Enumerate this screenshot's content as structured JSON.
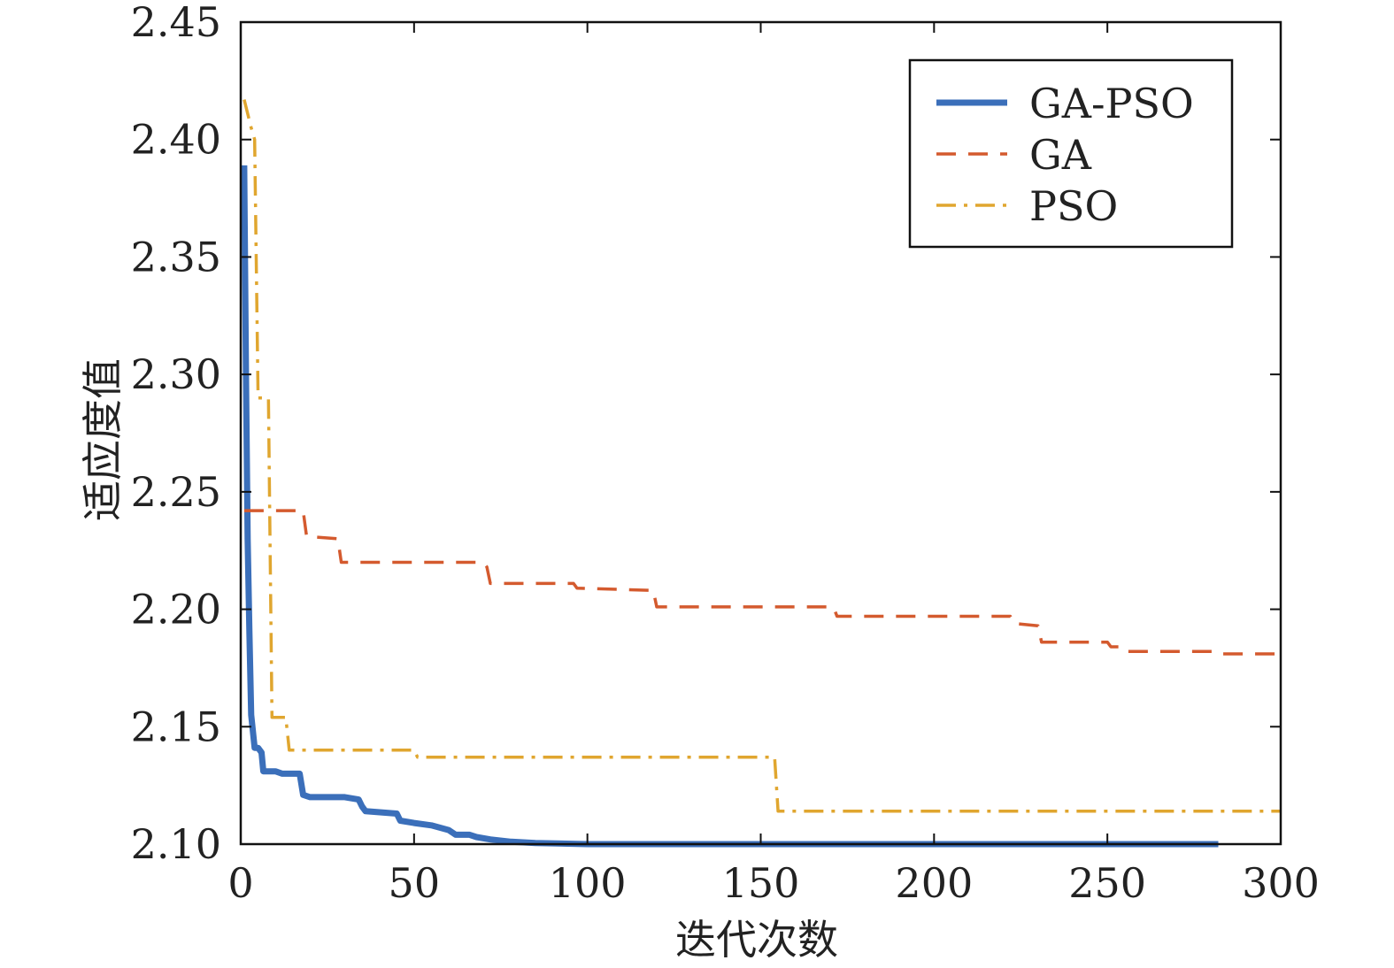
{
  "chart_data": {
    "type": "line",
    "xlabel": "迭代次数",
    "ylabel": "适应度值",
    "xlim": [
      0,
      300
    ],
    "ylim": [
      2.1,
      2.45
    ],
    "xticks": [
      "0",
      "50",
      "100",
      "150",
      "200",
      "250",
      "300"
    ],
    "yticks": [
      "2.10",
      "2.15",
      "2.20",
      "2.25",
      "2.30",
      "2.35",
      "2.40",
      "2.45"
    ],
    "grid": false,
    "legend_position": "top-right",
    "series": [
      {
        "name": "GA-PSO",
        "color": "#3b6fba",
        "style": "solid",
        "points": [
          [
            1,
            2.389
          ],
          [
            1.5,
            2.3
          ],
          [
            2,
            2.23
          ],
          [
            2.5,
            2.19
          ],
          [
            3,
            2.155
          ],
          [
            4,
            2.141
          ],
          [
            5,
            2.141
          ],
          [
            6,
            2.139
          ],
          [
            6.5,
            2.131
          ],
          [
            10,
            2.131
          ],
          [
            12,
            2.13
          ],
          [
            17,
            2.13
          ],
          [
            18,
            2.121
          ],
          [
            20,
            2.12
          ],
          [
            30,
            2.12
          ],
          [
            34,
            2.119
          ],
          [
            35,
            2.116
          ],
          [
            36,
            2.114
          ],
          [
            45,
            2.113
          ],
          [
            46,
            2.11
          ],
          [
            50,
            2.109
          ],
          [
            55,
            2.108
          ],
          [
            60,
            2.106
          ],
          [
            62,
            2.104
          ],
          [
            66,
            2.104
          ],
          [
            68,
            2.103
          ],
          [
            72,
            2.102
          ],
          [
            78,
            2.101
          ],
          [
            85,
            2.1005
          ],
          [
            100,
            2.1
          ],
          [
            282,
            2.1
          ]
        ]
      },
      {
        "name": "GA",
        "color": "#d45a2e",
        "style": "dashed",
        "points": [
          [
            1,
            2.242
          ],
          [
            18,
            2.242
          ],
          [
            19,
            2.231
          ],
          [
            28,
            2.23
          ],
          [
            29,
            2.22
          ],
          [
            70,
            2.22
          ],
          [
            71,
            2.218
          ],
          [
            72,
            2.211
          ],
          [
            96,
            2.211
          ],
          [
            97,
            2.209
          ],
          [
            119,
            2.208
          ],
          [
            120,
            2.201
          ],
          [
            171,
            2.201
          ],
          [
            172,
            2.197
          ],
          [
            222,
            2.197
          ],
          [
            223,
            2.194
          ],
          [
            230,
            2.193
          ],
          [
            231,
            2.186
          ],
          [
            250,
            2.186
          ],
          [
            251,
            2.184
          ],
          [
            255,
            2.184
          ],
          [
            256,
            2.182
          ],
          [
            282,
            2.182
          ],
          [
            283,
            2.181
          ],
          [
            300,
            2.181
          ]
        ]
      },
      {
        "name": "PSO",
        "color": "#e0a62f",
        "style": "dashdot",
        "points": [
          [
            1,
            2.417
          ],
          [
            3,
            2.405
          ],
          [
            4,
            2.4
          ],
          [
            5,
            2.29
          ],
          [
            8,
            2.29
          ],
          [
            9,
            2.154
          ],
          [
            13,
            2.154
          ],
          [
            14,
            2.14
          ],
          [
            50,
            2.14
          ],
          [
            51,
            2.137
          ],
          [
            154,
            2.137
          ],
          [
            155,
            2.114
          ],
          [
            300,
            2.114
          ]
        ]
      }
    ]
  }
}
